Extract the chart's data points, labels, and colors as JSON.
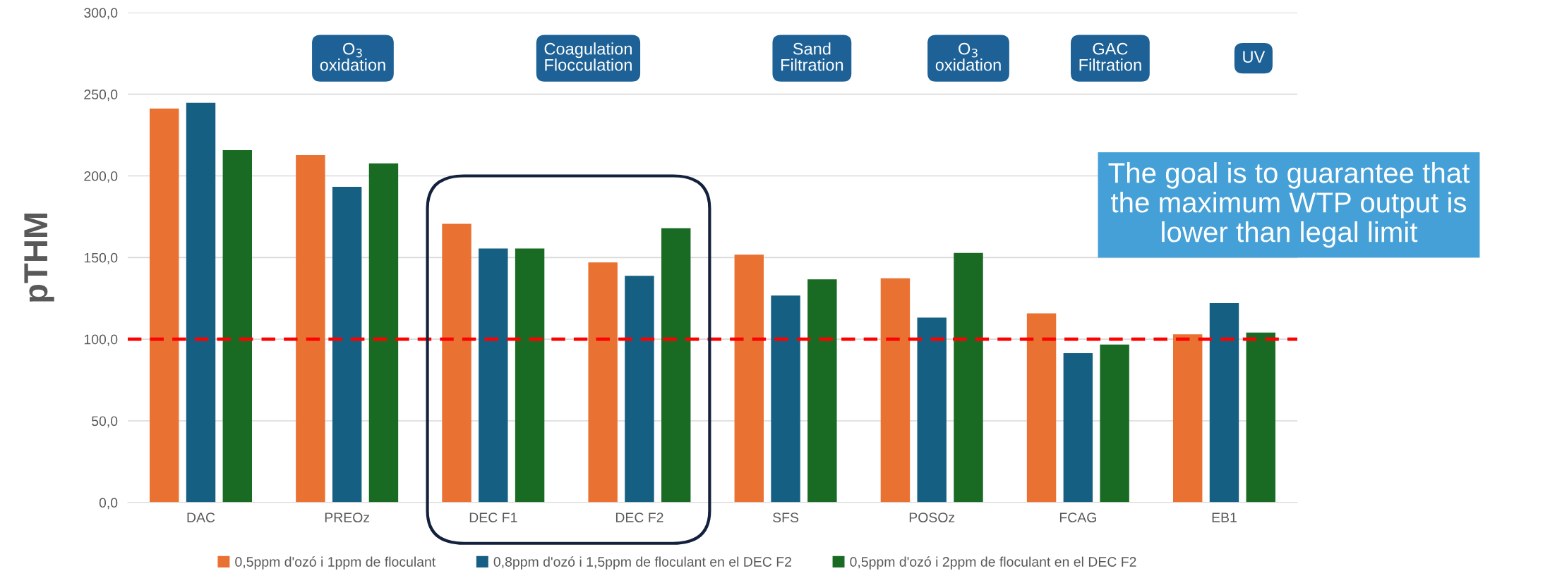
{
  "chart_data": {
    "type": "bar",
    "ylabel": "pTHM",
    "categories": [
      "DAC",
      "PREOz",
      "DEC F1",
      "DEC F2",
      "SFS",
      "POSOz",
      "FCAG",
      "EB1"
    ],
    "series": [
      {
        "name": "0,5ppm d'ozó i 1ppm de floculant",
        "color": "#e97132",
        "values": [
          241.2,
          212.7,
          170.6,
          147.0,
          151.8,
          137.3,
          115.8,
          103.0
        ]
      },
      {
        "name": "0,8ppm d'ozó i 1,5ppm de floculant en el DEC F2",
        "color": "#156082",
        "values": [
          244.8,
          193.3,
          155.5,
          138.8,
          126.7,
          113.2,
          91.4,
          122.1
        ]
      },
      {
        "name": "0,5ppm d'ozó i 2ppm de floculant en el DEC F2",
        "color": "#196b24",
        "values": [
          215.8,
          207.6,
          155.5,
          167.9,
          136.6,
          152.8,
          96.7,
          104.0
        ]
      }
    ],
    "ylim": [
      0,
      300
    ],
    "yticks": [
      {
        "value": 0,
        "label": "0,0"
      },
      {
        "value": 50,
        "label": "50,0"
      },
      {
        "value": 100,
        "label": "100,0"
      },
      {
        "value": 150,
        "label": "150,0"
      },
      {
        "value": 200,
        "label": "200,0"
      },
      {
        "value": 250,
        "label": "250,0"
      },
      {
        "value": 300,
        "label": "300,0"
      }
    ],
    "grid": "y",
    "legend": "bottom",
    "ref_lines": [
      {
        "axis": "y",
        "value": 100,
        "color": "#ff0000",
        "line_style": "dashed"
      }
    ],
    "annotations": [
      "O$_{3}$\noxidation",
      "Coagulation\nFlocculation",
      "Sand\nFiltration",
      "O$_{3}$\noxidation",
      "GAC\nFiltration",
      "UV",
      "The goal is to guarantee that\nthe maximum WTP output is\nlower than legal limit"
    ]
  }
}
